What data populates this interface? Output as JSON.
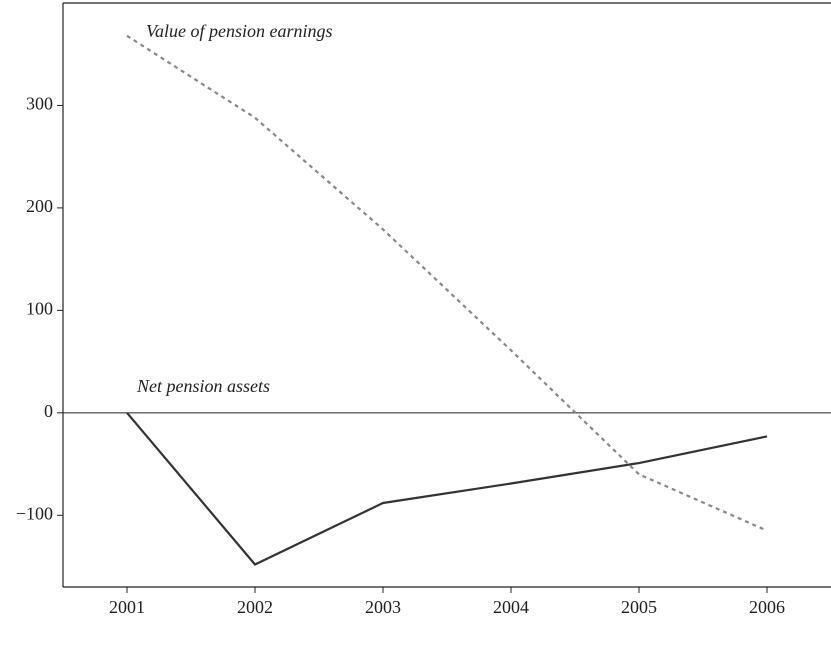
{
  "chart_data": {
    "type": "line",
    "x": [
      2001,
      2002,
      2003,
      2004,
      2005,
      2006
    ],
    "series": [
      {
        "name": "Value of pension earnings",
        "color": "#888888",
        "style": "dashed",
        "values": [
          368,
          288,
          179,
          61,
          -60,
          -115
        ]
      },
      {
        "name": "Net pension assets",
        "color": "#333333",
        "style": "solid",
        "values": [
          0,
          -148,
          -88,
          -69,
          -49,
          -23
        ]
      }
    ],
    "xlim": [
      2000.5,
      2006.5
    ],
    "xticks": [
      2001,
      2002,
      2003,
      2004,
      2005,
      2006
    ],
    "ylim": [
      -170,
      400
    ],
    "yticks": [
      {
        "value": -100,
        "label": "−100"
      },
      0,
      100,
      200,
      300
    ],
    "zero_line": true
  }
}
